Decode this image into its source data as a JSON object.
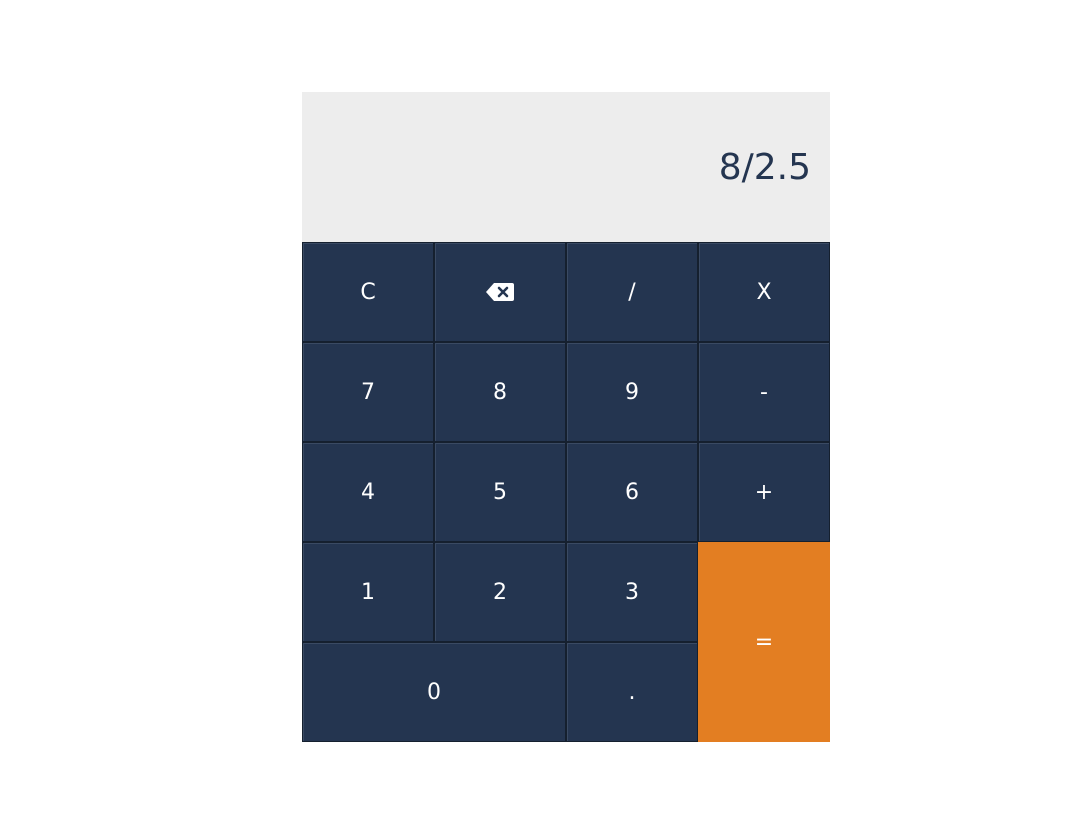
{
  "display": {
    "value": "8/2.5"
  },
  "keys": {
    "clear": "C",
    "backspace_icon": "backspace-icon",
    "divide": "/",
    "multiply": "X",
    "seven": "7",
    "eight": "8",
    "nine": "9",
    "minus": "-",
    "four": "4",
    "five": "5",
    "six": "6",
    "plus": "+",
    "one": "1",
    "two": "2",
    "three": "3",
    "equals": "=",
    "zero": "0",
    "decimal": "."
  },
  "colors": {
    "key_background": "#243550",
    "equals_background": "#e37e22",
    "display_background": "#ededed",
    "display_text": "#243550"
  }
}
